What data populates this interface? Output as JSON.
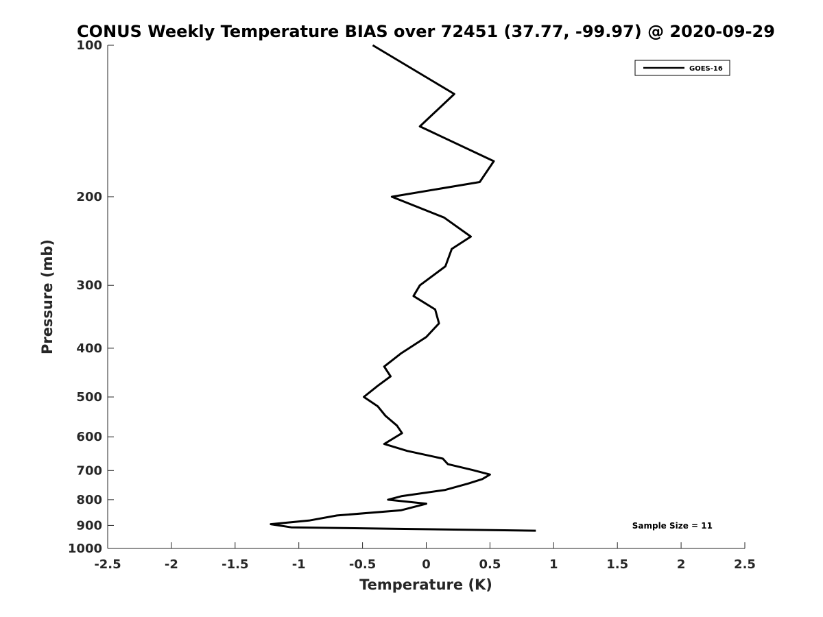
{
  "chart_data": {
    "type": "line",
    "title": "CONUS Weekly Temperature BIAS over 72451 (37.77, -99.97) @ 2020-09-29",
    "xlabel": "Temperature (K)",
    "ylabel": "Pressure (mb)",
    "xlim": [
      -2.5,
      2.5
    ],
    "ylim": [
      100,
      1000
    ],
    "y_scale": "log",
    "y_reversed": true,
    "grid": false,
    "legend_position": "top-right",
    "x_ticks": [
      -2.5,
      -2,
      -1.5,
      -1,
      -0.5,
      0,
      0.5,
      1,
      1.5,
      2,
      2.5
    ],
    "x_tick_labels": [
      "-2.5",
      "-2",
      "-1.5",
      "-1",
      "-0.5",
      "0",
      "0.5",
      "1",
      "1.5",
      "2",
      "2.5"
    ],
    "y_ticks": [
      100,
      200,
      300,
      400,
      500,
      600,
      700,
      800,
      900,
      1000
    ],
    "y_tick_labels": [
      "100",
      "200",
      "300",
      "400",
      "500",
      "600",
      "700",
      "800",
      "900",
      "1000"
    ],
    "series": [
      {
        "name": "GOES-16",
        "color": "#000000",
        "points": [
          [
            -0.42,
            100
          ],
          [
            0.22,
            125
          ],
          [
            -0.05,
            145
          ],
          [
            0.53,
            170
          ],
          [
            0.42,
            187
          ],
          [
            -0.27,
            200
          ],
          [
            0.14,
            220
          ],
          [
            0.35,
            240
          ],
          [
            0.2,
            254
          ],
          [
            0.15,
            275
          ],
          [
            -0.05,
            300
          ],
          [
            -0.1,
            315
          ],
          [
            0.07,
            335
          ],
          [
            0.1,
            357
          ],
          [
            0.0,
            380
          ],
          [
            -0.2,
            410
          ],
          [
            -0.33,
            435
          ],
          [
            -0.28,
            455
          ],
          [
            -0.38,
            475
          ],
          [
            -0.49,
            500
          ],
          [
            -0.38,
            522
          ],
          [
            -0.32,
            545
          ],
          [
            -0.23,
            570
          ],
          [
            -0.19,
            590
          ],
          [
            -0.33,
            620
          ],
          [
            -0.15,
            640
          ],
          [
            0.13,
            663
          ],
          [
            0.17,
            680
          ],
          [
            0.36,
            698
          ],
          [
            0.5,
            713
          ],
          [
            0.44,
            728
          ],
          [
            0.33,
            743
          ],
          [
            0.15,
            765
          ],
          [
            -0.19,
            787
          ],
          [
            -0.3,
            800
          ],
          [
            0.0,
            815
          ],
          [
            -0.2,
            840
          ],
          [
            -0.7,
            860
          ],
          [
            -0.92,
            880
          ],
          [
            -1.22,
            895
          ],
          [
            -1.06,
            908
          ],
          [
            0.86,
            922
          ]
        ]
      }
    ],
    "annotations": [
      {
        "text": "Sample Size = 11"
      }
    ]
  }
}
